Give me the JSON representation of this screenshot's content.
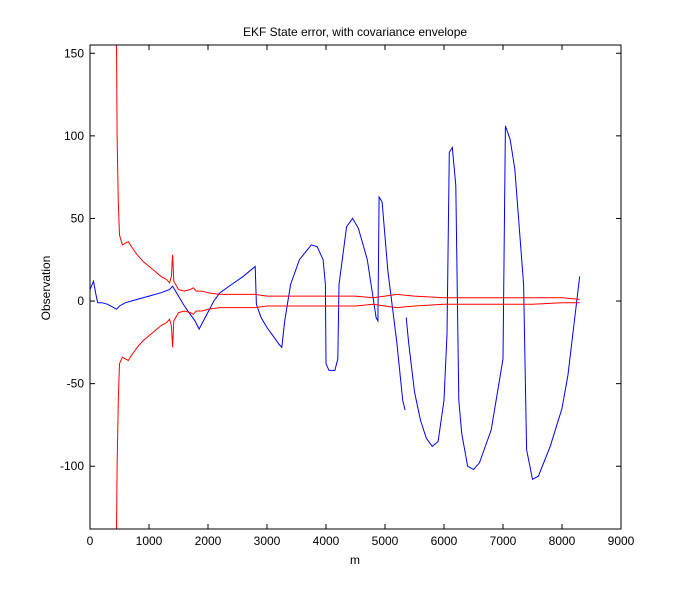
{
  "chart_data": {
    "type": "line",
    "title": "EKF State error, with covariance envelope",
    "xlabel": "m",
    "ylabel": "Observation",
    "xlim": [
      0,
      9000
    ],
    "ylim": [
      -138,
      155
    ],
    "xticks": [
      0,
      1000,
      2000,
      3000,
      4000,
      5000,
      6000,
      7000,
      8000,
      9000
    ],
    "yticks": [
      -100,
      -50,
      0,
      50,
      100,
      150
    ],
    "grid": false,
    "legend": "none",
    "series": [
      {
        "color": "#0000ff",
        "segments": [
          [
            [
              0,
              7
            ],
            [
              60,
              12
            ],
            [
              100,
              4
            ],
            [
              130,
              -1
            ],
            [
              200,
              -1
            ],
            [
              300,
              -2
            ],
            [
              400,
              -4
            ],
            [
              450,
              -5
            ],
            [
              500,
              -3
            ],
            [
              600,
              -1
            ],
            [
              800,
              1
            ],
            [
              1000,
              3
            ],
            [
              1200,
              5
            ],
            [
              1350,
              7
            ],
            [
              1400,
              9
            ],
            [
              1500,
              3
            ],
            [
              1600,
              -3
            ],
            [
              1700,
              -8
            ],
            [
              1780,
              -12
            ],
            [
              1850,
              -17
            ],
            [
              1950,
              -10
            ],
            [
              2100,
              0
            ],
            [
              2200,
              5
            ],
            [
              2400,
              10
            ],
            [
              2600,
              15
            ],
            [
              2800,
              21
            ],
            [
              2820,
              -2
            ],
            [
              2900,
              -10
            ],
            [
              3000,
              -16
            ],
            [
              3100,
              -21
            ],
            [
              3200,
              -26
            ],
            [
              3250,
              -28
            ],
            [
              3300,
              -12
            ],
            [
              3400,
              10
            ],
            [
              3550,
              25
            ],
            [
              3750,
              34
            ],
            [
              3850,
              33
            ],
            [
              3950,
              25
            ],
            [
              3990,
              10
            ],
            [
              4000,
              -38
            ],
            [
              4050,
              -42
            ],
            [
              4150,
              -42
            ],
            [
              4200,
              -35
            ],
            [
              4220,
              10
            ],
            [
              4350,
              45
            ],
            [
              4450,
              50
            ],
            [
              4550,
              44
            ],
            [
              4700,
              25
            ],
            [
              4850,
              -10
            ],
            [
              4880,
              -12
            ],
            [
              4900,
              63
            ],
            [
              4950,
              60
            ],
            [
              5050,
              18
            ],
            [
              5200,
              -25
            ],
            [
              5300,
              -60
            ],
            [
              5340,
              -66
            ]
          ],
          [
            [
              5360,
              -10
            ],
            [
              5400,
              -25
            ],
            [
              5500,
              -55
            ],
            [
              5600,
              -72
            ],
            [
              5700,
              -83
            ],
            [
              5800,
              -88
            ],
            [
              5900,
              -85
            ],
            [
              6000,
              -60
            ],
            [
              6050,
              -20
            ],
            [
              6090,
              90
            ],
            [
              6140,
              93
            ],
            [
              6200,
              70
            ],
            [
              6250,
              -60
            ],
            [
              6300,
              -80
            ],
            [
              6400,
              -100
            ],
            [
              6500,
              -102
            ],
            [
              6600,
              -98
            ],
            [
              6800,
              -78
            ],
            [
              7000,
              -35
            ],
            [
              7040,
              106
            ],
            [
              7120,
              98
            ],
            [
              7200,
              80
            ],
            [
              7350,
              10
            ],
            [
              7400,
              -90
            ],
            [
              7500,
              -108
            ],
            [
              7600,
              -106
            ],
            [
              7800,
              -88
            ],
            [
              8000,
              -65
            ],
            [
              8100,
              -45
            ],
            [
              8300,
              15
            ]
          ]
        ]
      },
      {
        "color": "#ff0000",
        "segments": [
          [
            [
              450,
              155
            ],
            [
              460,
              100
            ],
            [
              480,
              60
            ],
            [
              500,
              40
            ],
            [
              550,
              34
            ],
            [
              600,
              35
            ],
            [
              650,
              36
            ],
            [
              700,
              33
            ],
            [
              800,
              28
            ],
            [
              900,
              24
            ],
            [
              1000,
              21
            ],
            [
              1100,
              18
            ],
            [
              1200,
              15
            ],
            [
              1300,
              13
            ],
            [
              1350,
              11
            ],
            [
              1380,
              15
            ],
            [
              1400,
              28
            ],
            [
              1420,
              12
            ],
            [
              1500,
              7
            ],
            [
              1600,
              6
            ],
            [
              1700,
              7
            ],
            [
              1750,
              8
            ],
            [
              1800,
              6
            ],
            [
              1900,
              6
            ],
            [
              2000,
              5
            ],
            [
              2200,
              4
            ],
            [
              2500,
              4
            ],
            [
              2800,
              4
            ],
            [
              3000,
              3
            ],
            [
              3400,
              3
            ],
            [
              4000,
              3
            ],
            [
              4500,
              3
            ],
            [
              4800,
              2
            ],
            [
              5000,
              3
            ],
            [
              5200,
              4
            ],
            [
              5500,
              3
            ],
            [
              6000,
              2
            ],
            [
              6500,
              2
            ],
            [
              7000,
              2
            ],
            [
              7500,
              2
            ],
            [
              8000,
              2
            ],
            [
              8300,
              1
            ]
          ],
          [
            [
              450,
              -138
            ],
            [
              460,
              -100
            ],
            [
              480,
              -60
            ],
            [
              500,
              -38
            ],
            [
              550,
              -34
            ],
            [
              600,
              -35
            ],
            [
              650,
              -36
            ],
            [
              700,
              -33
            ],
            [
              800,
              -28
            ],
            [
              900,
              -24
            ],
            [
              1000,
              -21
            ],
            [
              1100,
              -18
            ],
            [
              1200,
              -15
            ],
            [
              1300,
              -13
            ],
            [
              1350,
              -11
            ],
            [
              1380,
              -15
            ],
            [
              1400,
              -28
            ],
            [
              1420,
              -12
            ],
            [
              1500,
              -7
            ],
            [
              1600,
              -6
            ],
            [
              1700,
              -7
            ],
            [
              1750,
              -8
            ],
            [
              1800,
              -6
            ],
            [
              1900,
              -6
            ],
            [
              2000,
              -5
            ],
            [
              2200,
              -4
            ],
            [
              2500,
              -4
            ],
            [
              2800,
              -4
            ],
            [
              3000,
              -3
            ],
            [
              3400,
              -3
            ],
            [
              4000,
              -3
            ],
            [
              4500,
              -3
            ],
            [
              4800,
              -2
            ],
            [
              5000,
              -3
            ],
            [
              5200,
              -4
            ],
            [
              5500,
              -3
            ],
            [
              6000,
              -2
            ],
            [
              6500,
              -2
            ],
            [
              7000,
              -2
            ],
            [
              7500,
              -2
            ],
            [
              8000,
              -1
            ],
            [
              8300,
              -1
            ]
          ]
        ]
      }
    ]
  }
}
